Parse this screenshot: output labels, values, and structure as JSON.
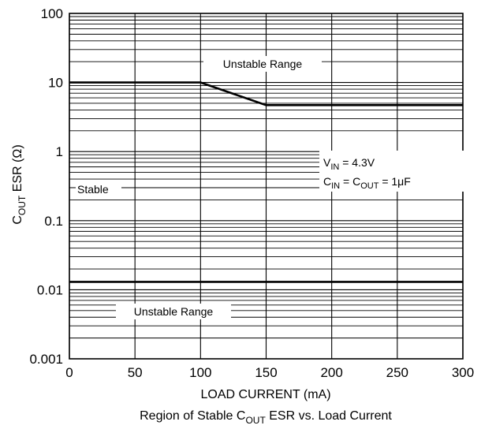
{
  "chart_data": {
    "type": "line",
    "title": {
      "pre": "Region of Stable C",
      "sub": "OUT",
      "post": " ESR vs. Load Current"
    },
    "xlabel": "LOAD CURRENT (mA)",
    "ylabel": {
      "pre": "C",
      "sub": "OUT",
      "post": " ESR (Ω)"
    },
    "xlim": [
      0,
      300
    ],
    "ylim": [
      0.001,
      100
    ],
    "yscale": "log",
    "x_ticks": [
      "0",
      "50",
      "100",
      "150",
      "200",
      "250",
      "300"
    ],
    "y_ticks": [
      "0.001",
      "0.01",
      "0.1",
      "1",
      "10",
      "100"
    ],
    "grid": {
      "horizontal": true,
      "vertical": true
    },
    "series": [
      {
        "x": [
          0,
          100,
          150,
          300
        ],
        "y": [
          10,
          10,
          4.7,
          4.7
        ]
      },
      {
        "x": [
          0,
          300
        ],
        "y": [
          0.013,
          0.013
        ]
      }
    ],
    "annotations": {
      "unstable_upper": "Unstable Range",
      "unstable_lower": "Unstable Range",
      "stable": "Stable",
      "cond_vin": {
        "pre": "V",
        "sub": "IN",
        "post": " = 4.3V"
      },
      "cond_cap": {
        "a": "C",
        "a_sub": "IN",
        "mid": " = C",
        "b_sub": "OUT",
        "post": " = 1μF"
      }
    }
  }
}
